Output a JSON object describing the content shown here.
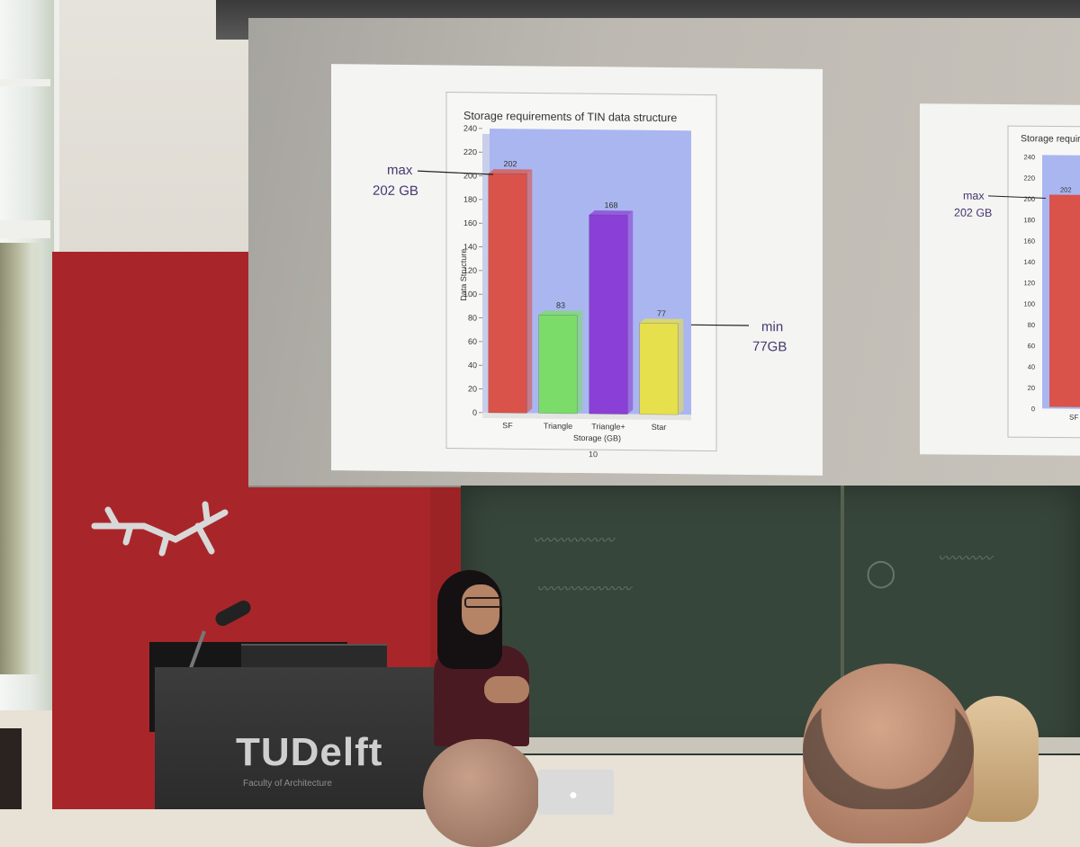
{
  "chart_data": {
    "type": "bar",
    "title": "Storage requirements of TIN data structure",
    "xlabel": "Storage (GB)",
    "ylabel": "Data Structure",
    "categories": [
      "SF",
      "Triangle",
      "Triangle+",
      "Star"
    ],
    "values": [
      202,
      83,
      168,
      77
    ],
    "bar_labels": [
      "202",
      "83",
      "168",
      "77"
    ],
    "ylim": [
      0,
      240
    ],
    "yticks": [
      "0",
      "20",
      "40",
      "60",
      "80",
      "100",
      "120",
      "140",
      "160",
      "180",
      "200",
      "220",
      "240"
    ],
    "colors": [
      "#d9534a",
      "#7bdc6a",
      "#8a3fd6",
      "#e6e04d"
    ],
    "plot_background": "#aab6f0",
    "grid": false
  },
  "annotations": {
    "max_label": "max",
    "max_value": "202 GB",
    "min_label": "min",
    "min_value": "77GB"
  },
  "slide": {
    "page_number": "10"
  },
  "side_slide": {
    "title_partial": "Storage requireme",
    "max_label": "max",
    "max_value": "202 GB",
    "bar_label": "202",
    "category_partial": "SF"
  },
  "lectern": {
    "brand": "TUDelft",
    "subtitle": "Faculty of Architecture"
  },
  "colors": {
    "wall_red": "#a8262a",
    "chalkboard": "#37463b",
    "annotation": "#46366f"
  }
}
